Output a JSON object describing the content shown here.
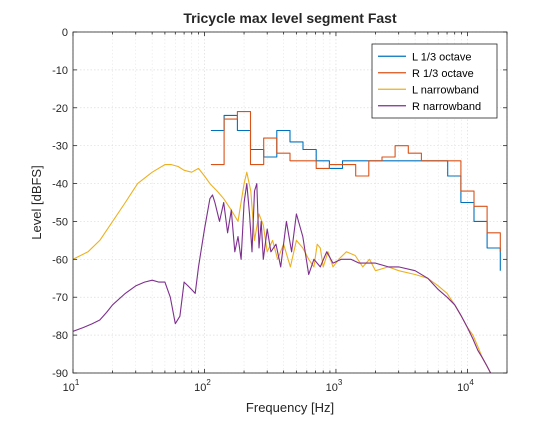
{
  "chart_data": {
    "type": "line",
    "title": "Tricycle max level segment Fast",
    "xlabel": "Frequency [Hz]",
    "ylabel": "Level [dBFS]",
    "xscale": "log",
    "xlim": [
      10,
      20000
    ],
    "ylim": [
      -90,
      0
    ],
    "xticks": [
      {
        "value": 10,
        "base": "10",
        "exp": "1"
      },
      {
        "value": 100,
        "base": "10",
        "exp": "2"
      },
      {
        "value": 1000,
        "base": "10",
        "exp": "3"
      },
      {
        "value": 10000,
        "base": "10",
        "exp": "4"
      }
    ],
    "yticks": [
      0,
      -10,
      -20,
      -30,
      -40,
      -50,
      -60,
      -70,
      -80,
      -90
    ],
    "grid": "major and minor, dotted",
    "legend_position": "top-right",
    "colors": {
      "L 1/3 octave": "#0072bd",
      "R 1/3 octave": "#d95319",
      "L narrowband": "#edb120",
      "R narrowband": "#7e2f8e"
    },
    "series": [
      {
        "name": "L 1/3 octave",
        "style": "stairs",
        "x": [
          112,
          141,
          178,
          224,
          282,
          355,
          447,
          562,
          708,
          891,
          1122,
          1413,
          1778,
          2239,
          2818,
          3548,
          4467,
          5623,
          7079,
          8913,
          11220,
          14125,
          17783
        ],
        "y": [
          -26,
          -22,
          -26,
          -31,
          -33,
          -26,
          -29,
          -31,
          -34,
          -36,
          -34,
          -34,
          -34,
          -34,
          -34,
          -34,
          -34,
          -34,
          -38,
          -45,
          -50,
          -57,
          -63
        ]
      },
      {
        "name": "R 1/3 octave",
        "style": "stairs",
        "x": [
          112,
          141,
          178,
          224,
          282,
          355,
          447,
          562,
          708,
          891,
          1122,
          1413,
          1778,
          2239,
          2818,
          3548,
          4467,
          5623,
          7079,
          8913,
          11220,
          14125,
          17783
        ],
        "y": [
          -35,
          -23,
          -21,
          -35,
          -28,
          -32,
          -34,
          -34,
          -36,
          -35,
          -35,
          -38,
          -34,
          -33,
          -30,
          -32,
          -34,
          -34,
          -34,
          -42,
          -46,
          -53,
          -58
        ]
      },
      {
        "name": "L narrowband",
        "style": "line",
        "x": [
          10,
          13,
          16,
          20,
          25,
          31,
          40,
          50,
          56,
          63,
          70,
          80,
          90,
          100,
          110,
          125,
          140,
          160,
          180,
          200,
          210,
          225,
          240,
          260,
          280,
          300,
          330,
          360,
          400,
          450,
          500,
          560,
          620,
          680,
          720,
          760,
          800,
          870,
          950,
          1050,
          1200,
          1400,
          1600,
          1800,
          2000,
          2500,
          3000,
          4000,
          5000,
          6000,
          7000,
          8000,
          9000,
          10000,
          11000,
          12000,
          13000,
          14000,
          15000
        ],
        "y": [
          -60,
          -58,
          -55,
          -50,
          -45,
          -40,
          -37,
          -35,
          -35,
          -35.5,
          -36.5,
          -37,
          -36,
          -38,
          -40,
          -42,
          -44,
          -47,
          -50,
          -40,
          -37,
          -42,
          -55,
          -48,
          -51,
          -58,
          -55,
          -60,
          -56,
          -62,
          -55,
          -57,
          -60,
          -62,
          -56,
          -57,
          -62,
          -58,
          -62,
          -60,
          -58,
          -59,
          -62,
          -60,
          -63,
          -62,
          -63,
          -64,
          -65,
          -67,
          -69,
          -72,
          -75,
          -78,
          -80,
          -83,
          -86,
          -88,
          -90
        ]
      },
      {
        "name": "R narrowband",
        "style": "line",
        "x": [
          10,
          12,
          14,
          16,
          18,
          20,
          25,
          30,
          35,
          40,
          45,
          50,
          55,
          60,
          65,
          70,
          75,
          80,
          85,
          90,
          100,
          110,
          115,
          120,
          130,
          140,
          150,
          160,
          170,
          180,
          190,
          200,
          210,
          220,
          230,
          240,
          250,
          260,
          270,
          280,
          300,
          320,
          350,
          380,
          420,
          460,
          500,
          560,
          620,
          680,
          760,
          850,
          950,
          1100,
          1300,
          1500,
          2000,
          2500,
          3000,
          4000,
          5000,
          6000,
          7000,
          8000,
          9000,
          10000,
          11000,
          12000,
          13000,
          14000,
          15000
        ],
        "y": [
          -79,
          -78,
          -77,
          -76,
          -74,
          -72,
          -69,
          -67,
          -66,
          -65.5,
          -66,
          -66,
          -70,
          -77,
          -75,
          -66,
          -67,
          -68,
          -69,
          -62,
          -52,
          -44,
          -43,
          -45,
          -50,
          -45,
          -53,
          -47,
          -58,
          -54,
          -60,
          -45,
          -40,
          -48,
          -58,
          -42,
          -40,
          -57,
          -50,
          -60,
          -52,
          -58,
          -56,
          -62,
          -50,
          -58,
          -48,
          -54,
          -64,
          -60,
          -62,
          -58,
          -61,
          -60,
          -60,
          -61,
          -61,
          -62,
          -62,
          -63,
          -65,
          -68,
          -70,
          -72,
          -75,
          -78,
          -81,
          -84,
          -86,
          -88,
          -90
        ]
      }
    ]
  }
}
